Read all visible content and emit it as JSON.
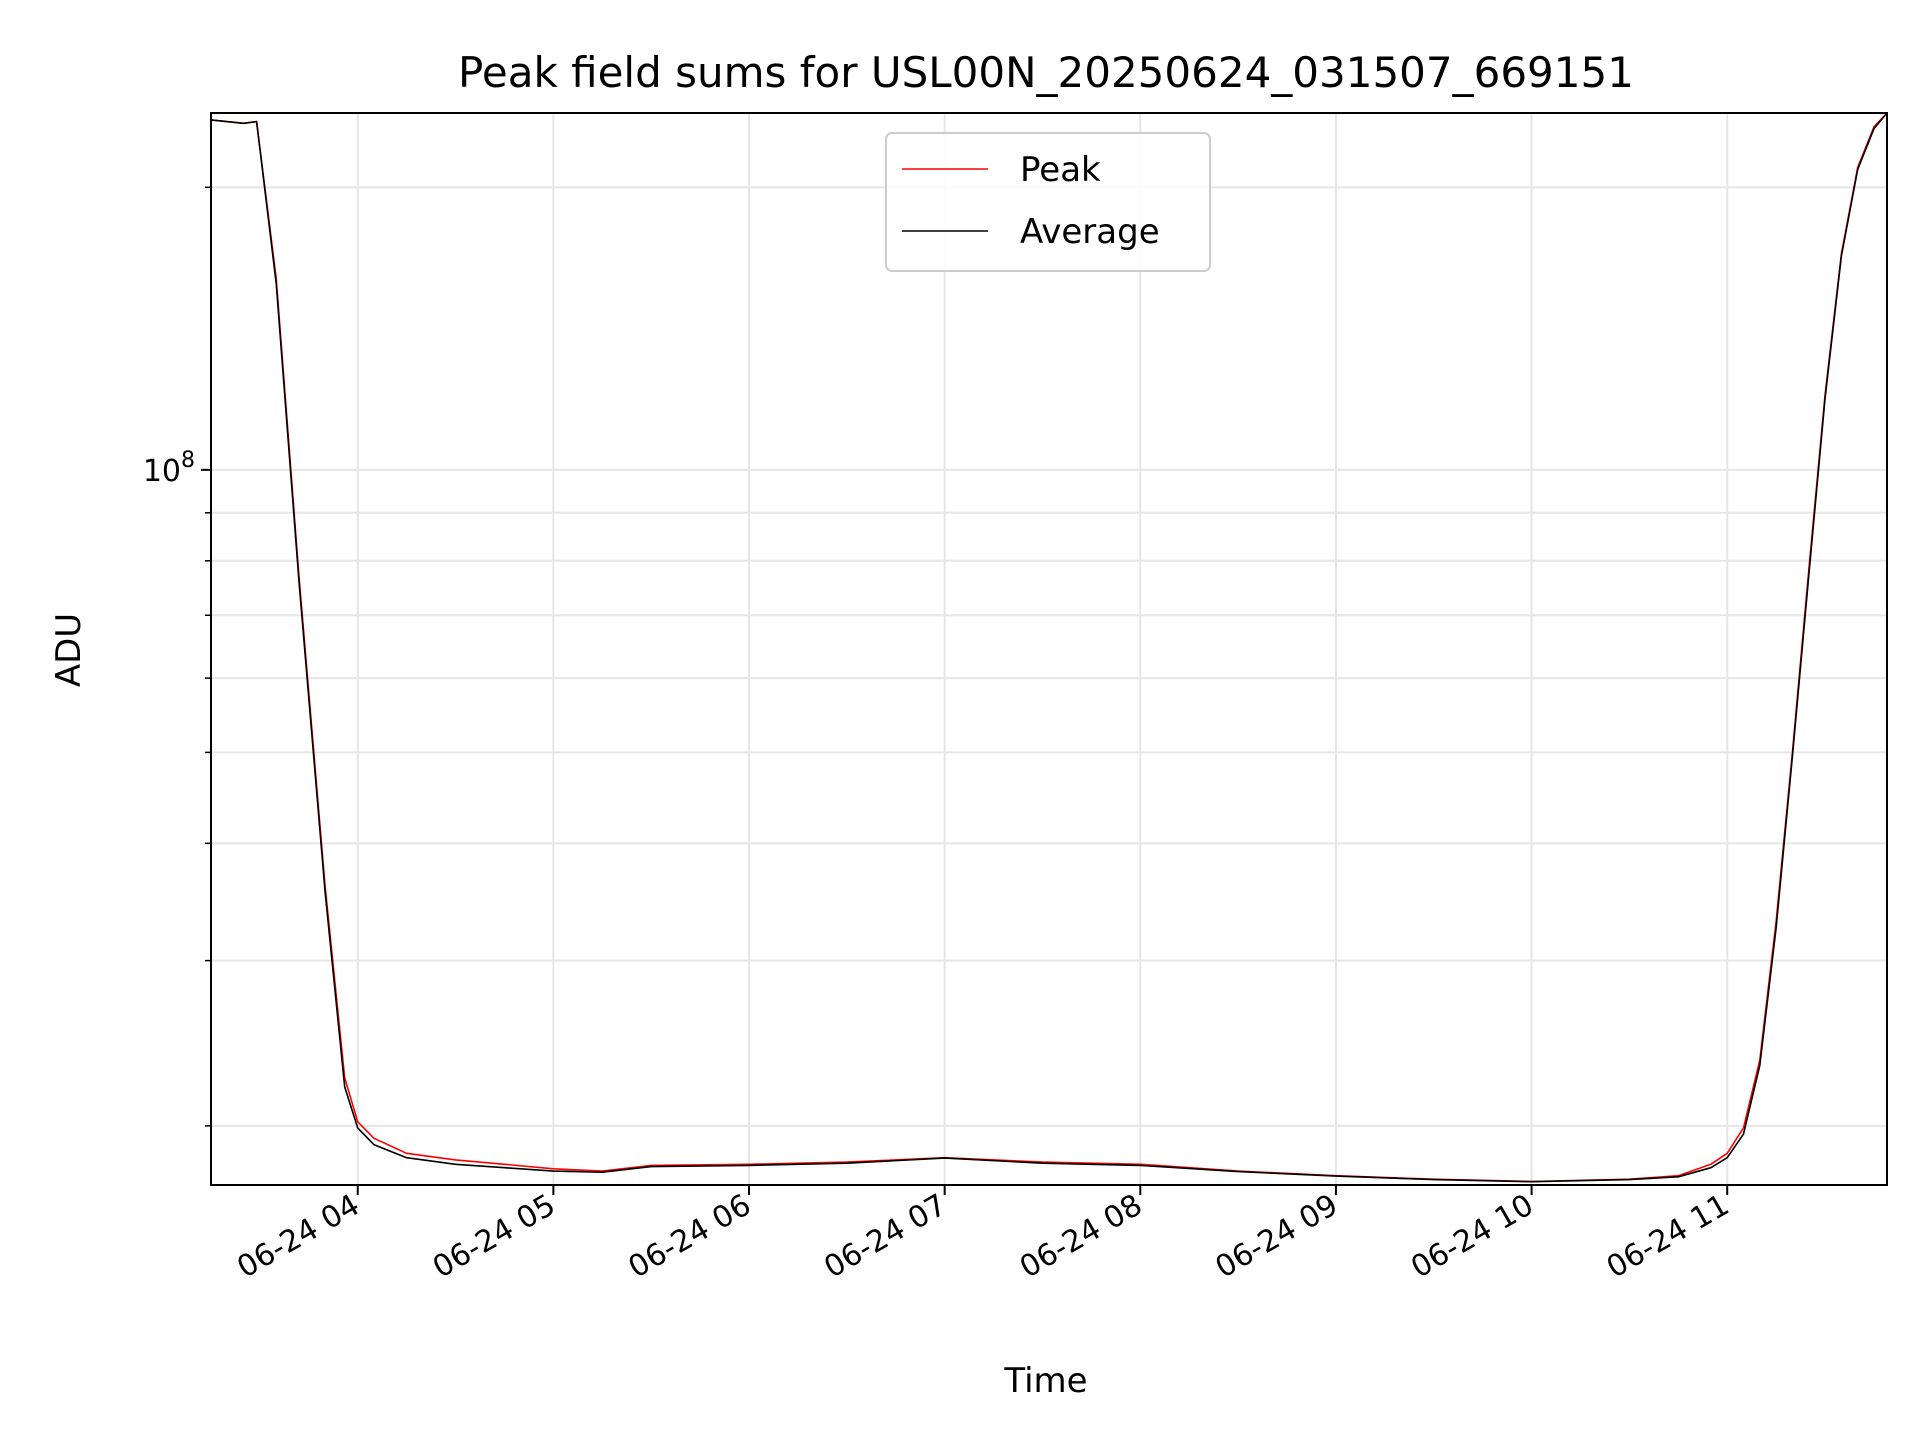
{
  "chart_data": {
    "type": "line",
    "title": "Peak field sums for USL00N_20250624_031507_669151",
    "xlabel": "Time",
    "ylabel": "ADU",
    "yscale": "log",
    "ytick_major_label_base": "10",
    "ytick_major_label_exp": "8",
    "ytick_major_value": 100000000,
    "xlim": [
      "06-24 03:15",
      "06-24 11:49"
    ],
    "ylim": [
      17300000,
      240000000
    ],
    "x_tick_labels": [
      "06-24 04",
      "06-24 05",
      "06-24 06",
      "06-24 07",
      "06-24 08",
      "06-24 09",
      "06-24 10",
      "06-24 11"
    ],
    "grid": true,
    "legend_position": "top-center",
    "colors": {
      "Peak": "#ff0000",
      "Average": "#000000"
    },
    "series": [
      {
        "name": "Peak",
        "x": [
          "06-24 03:15",
          "06-24 03:25",
          "06-24 03:29",
          "06-24 03:35",
          "06-24 03:42",
          "06-24 03:50",
          "06-24 03:56",
          "06-24 04:00",
          "06-24 04:05",
          "06-24 04:15",
          "06-24 04:30",
          "06-24 04:45",
          "06-24 05:00",
          "06-24 05:15",
          "06-24 05:30",
          "06-24 06:00",
          "06-24 06:30",
          "06-24 07:00",
          "06-24 07:30",
          "06-24 08:00",
          "06-24 08:30",
          "06-24 09:00",
          "06-24 09:30",
          "06-24 10:00",
          "06-24 10:30",
          "06-24 10:45",
          "06-24 10:55",
          "06-24 11:00",
          "06-24 11:05",
          "06-24 11:10",
          "06-24 11:15",
          "06-24 11:20",
          "06-24 11:25",
          "06-24 11:30",
          "06-24 11:35",
          "06-24 11:40",
          "06-24 11:45",
          "06-24 11:49"
        ],
        "y": [
          236000000,
          234000000,
          235000000,
          160000000,
          77000000,
          36000000,
          22500000,
          20200000,
          19400000,
          18700000,
          18400000,
          18200000,
          18000000,
          17900000,
          18150000,
          18200000,
          18300000,
          18500000,
          18300000,
          18200000,
          17900000,
          17700000,
          17550000,
          17450000,
          17550000,
          17700000,
          18200000,
          18700000,
          19900000,
          23500000,
          33000000,
          50000000,
          78000000,
          120000000,
          170000000,
          210000000,
          232000000,
          240000000
        ]
      },
      {
        "name": "Average",
        "x": [
          "06-24 03:15",
          "06-24 03:25",
          "06-24 03:29",
          "06-24 03:35",
          "06-24 03:42",
          "06-24 03:50",
          "06-24 03:56",
          "06-24 04:00",
          "06-24 04:05",
          "06-24 04:15",
          "06-24 04:30",
          "06-24 04:45",
          "06-24 05:00",
          "06-24 05:15",
          "06-24 05:30",
          "06-24 06:00",
          "06-24 06:30",
          "06-24 07:00",
          "06-24 07:30",
          "06-24 08:00",
          "06-24 08:30",
          "06-24 09:00",
          "06-24 09:30",
          "06-24 10:00",
          "06-24 10:30",
          "06-24 10:45",
          "06-24 10:55",
          "06-24 11:00",
          "06-24 11:05",
          "06-24 11:10",
          "06-24 11:15",
          "06-24 11:20",
          "06-24 11:25",
          "06-24 11:30",
          "06-24 11:35",
          "06-24 11:40",
          "06-24 11:45",
          "06-24 11:49"
        ],
        "y": [
          236000000,
          234000000,
          235000000,
          158000000,
          76000000,
          35500000,
          22000000,
          19900000,
          19100000,
          18500000,
          18200000,
          18050000,
          17900000,
          17850000,
          18100000,
          18150000,
          18250000,
          18480000,
          18250000,
          18150000,
          17880000,
          17680000,
          17530000,
          17440000,
          17530000,
          17650000,
          18050000,
          18500000,
          19600000,
          23200000,
          32500000,
          49500000,
          77000000,
          119000000,
          169000000,
          209000000,
          231000000,
          240000000
        ]
      }
    ]
  }
}
